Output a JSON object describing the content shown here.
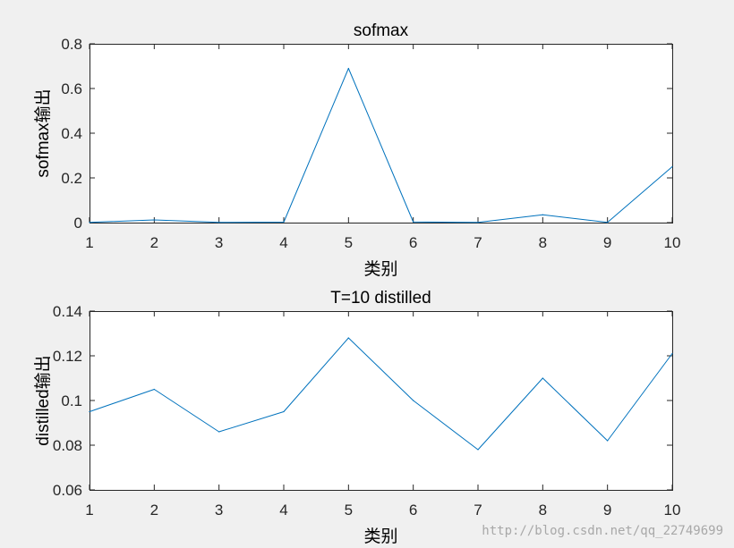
{
  "chart_data": [
    {
      "type": "line",
      "title": "sofmax",
      "xlabel": "类别",
      "ylabel": "sofmax输出",
      "x": [
        1,
        2,
        3,
        4,
        5,
        6,
        7,
        8,
        9,
        10
      ],
      "series": [
        {
          "values": [
            0.001,
            0.012,
            0.001,
            0.002,
            0.69,
            0.003,
            0.001,
            0.035,
            0.001,
            0.25
          ]
        }
      ],
      "xlim": [
        1,
        10
      ],
      "ylim": [
        0,
        0.8
      ],
      "xticks": [
        "1",
        "2",
        "3",
        "4",
        "5",
        "6",
        "7",
        "8",
        "9",
        "10"
      ],
      "yticks": [
        "0",
        "0.2",
        "0.4",
        "0.6",
        "0.8"
      ],
      "line_color": "#0072bd",
      "grid": false
    },
    {
      "type": "line",
      "title": "T=10 distilled",
      "xlabel": "类别",
      "ylabel": "distilled输出",
      "x": [
        1,
        2,
        3,
        4,
        5,
        6,
        7,
        8,
        9,
        10
      ],
      "series": [
        {
          "values": [
            0.095,
            0.105,
            0.086,
            0.095,
            0.128,
            0.1,
            0.078,
            0.11,
            0.082,
            0.121
          ]
        }
      ],
      "xlim": [
        1,
        10
      ],
      "ylim": [
        0.06,
        0.14
      ],
      "xticks": [
        "1",
        "2",
        "3",
        "4",
        "5",
        "6",
        "7",
        "8",
        "9",
        "10"
      ],
      "yticks": [
        "0.06",
        "0.08",
        "0.1",
        "0.12",
        "0.14"
      ],
      "line_color": "#0072bd",
      "grid": false
    }
  ],
  "watermark": "http://blog.csdn.net/qq_22749699"
}
